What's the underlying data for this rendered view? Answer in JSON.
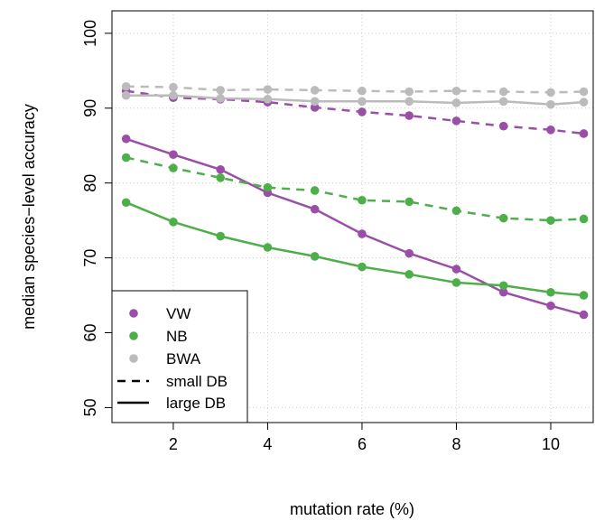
{
  "chart_data": {
    "type": "line",
    "title": "",
    "xlabel": "mutation rate (%)",
    "ylabel": "median species−level accuracy",
    "xlim": [
      0.7,
      10.9
    ],
    "ylim": [
      48,
      103
    ],
    "xticks": [
      2,
      4,
      6,
      8,
      10
    ],
    "xtick_labels": [
      "2",
      "4",
      "6",
      "8",
      "10"
    ],
    "yticks": [
      50,
      60,
      70,
      80,
      90,
      100
    ],
    "ytick_labels": [
      "50",
      "60",
      "70",
      "80",
      "90",
      "100"
    ],
    "grid": true,
    "legend_position": "bottom-left",
    "x": [
      1,
      2,
      3,
      4,
      5,
      6,
      7,
      8,
      9,
      10,
      10.7
    ],
    "series": [
      {
        "name": "VW",
        "db": "small DB",
        "color": "#9b4ea8",
        "dash": true,
        "values": [
          92.3,
          91.4,
          91.2,
          90.8,
          90.1,
          89.5,
          89.0,
          88.3,
          87.6,
          87.1,
          86.6
        ]
      },
      {
        "name": "VW",
        "db": "large DB",
        "color": "#9b4ea8",
        "dash": false,
        "values": [
          85.9,
          83.8,
          81.8,
          78.7,
          76.5,
          73.2,
          70.6,
          68.5,
          65.4,
          63.6,
          62.4
        ]
      },
      {
        "name": "NB",
        "db": "small DB",
        "color": "#4daf4a",
        "dash": true,
        "values": [
          83.4,
          82.0,
          80.7,
          79.4,
          79.0,
          77.7,
          77.5,
          76.3,
          75.3,
          75.0,
          75.2
        ]
      },
      {
        "name": "NB",
        "db": "large DB",
        "color": "#4daf4a",
        "dash": false,
        "values": [
          77.4,
          74.8,
          72.9,
          71.4,
          70.2,
          68.8,
          67.8,
          66.7,
          66.3,
          65.4,
          65.0
        ]
      },
      {
        "name": "BWA",
        "db": "small DB",
        "color": "#bbbbbb",
        "dash": true,
        "values": [
          92.9,
          92.8,
          92.4,
          92.5,
          92.4,
          92.3,
          92.2,
          92.3,
          92.2,
          92.1,
          92.2
        ]
      },
      {
        "name": "BWA",
        "db": "large DB",
        "color": "#bbbbbb",
        "dash": false,
        "values": [
          91.7,
          91.7,
          91.3,
          91.2,
          90.9,
          90.9,
          90.9,
          90.7,
          90.9,
          90.5,
          90.8
        ]
      }
    ],
    "legend": [
      {
        "label": "VW",
        "symbol": "point",
        "color": "#9b4ea8"
      },
      {
        "label": "NB",
        "symbol": "point",
        "color": "#4daf4a"
      },
      {
        "label": "BWA",
        "symbol": "point",
        "color": "#bbbbbb"
      },
      {
        "label": "small DB",
        "symbol": "dashed-line",
        "color": "#000000"
      },
      {
        "label": "large DB",
        "symbol": "solid-line",
        "color": "#000000"
      }
    ]
  }
}
